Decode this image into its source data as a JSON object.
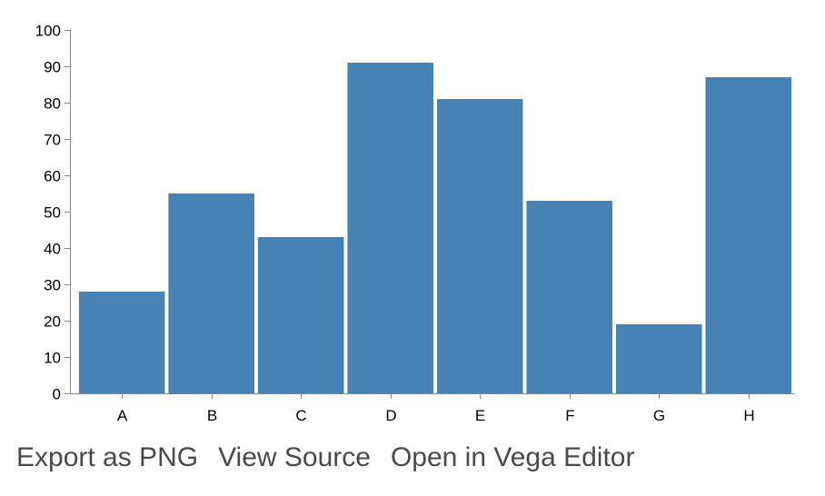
{
  "chart_data": {
    "type": "bar",
    "categories": [
      "A",
      "B",
      "C",
      "D",
      "E",
      "F",
      "G",
      "H"
    ],
    "values": [
      28,
      55,
      43,
      91,
      81,
      53,
      19,
      87
    ],
    "title": "",
    "xlabel": "",
    "ylabel": "",
    "ylim": [
      0,
      100
    ],
    "yticks": [
      0,
      10,
      20,
      30,
      40,
      50,
      60,
      70,
      80,
      90,
      100
    ],
    "grid": false,
    "colors": {
      "bar": "#4682b4",
      "axis": "#888888"
    }
  },
  "actions": {
    "export_png": "Export as PNG",
    "view_source": "View Source",
    "open_editor": "Open in Vega Editor"
  }
}
